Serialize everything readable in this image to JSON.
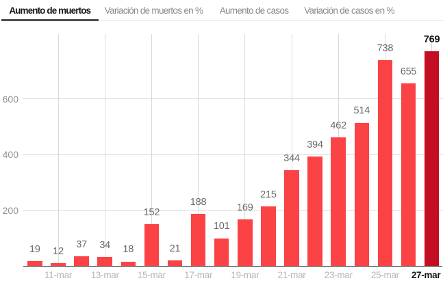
{
  "tabs": [
    {
      "label": "Aumento de muertos",
      "active": true
    },
    {
      "label": "Variación de muertos en %",
      "active": false
    },
    {
      "label": "Aumento de casos",
      "active": false
    },
    {
      "label": "Variación de casos en %",
      "active": false
    }
  ],
  "chart_data": {
    "type": "bar",
    "title": "Aumento de muertos",
    "values": [
      19,
      12,
      37,
      34,
      18,
      152,
      21,
      188,
      101,
      169,
      215,
      344,
      394,
      462,
      514,
      738,
      655,
      769
    ],
    "value_labels": [
      "19",
      "12",
      "37",
      "34",
      "18",
      "152",
      "21",
      "188",
      "101",
      "169",
      "215",
      "344",
      "394",
      "462",
      "514",
      "738",
      "655",
      "769"
    ],
    "x_tick_labels": [
      "11-mar",
      "13-mar",
      "15-mar",
      "17-mar",
      "19-mar",
      "21-mar",
      "23-mar",
      "25-mar",
      "27-mar"
    ],
    "x_tick_bar_indices": [
      1,
      3,
      5,
      7,
      9,
      11,
      13,
      15,
      17
    ],
    "y_ticks": [
      200,
      400,
      600
    ],
    "ylim": [
      0,
      830
    ],
    "grid": true,
    "legend": false,
    "highlight_index": 17
  },
  "colors": {
    "bar": "#fb4245",
    "bar_highlight": "#c40e22",
    "grid": "#d9d9d9",
    "axis_line": "#2a2a2a",
    "value_label": "#6a6a6a",
    "x_label": "#b5b5b5",
    "y_label": "#8f8f8f",
    "emphasis_text": "#141414",
    "tab_active_text": "#161616",
    "tab_inactive_text": "#8a8a8a",
    "tab_underline": "#4d4d4d",
    "tabbar_border": "#e3e3e3"
  }
}
